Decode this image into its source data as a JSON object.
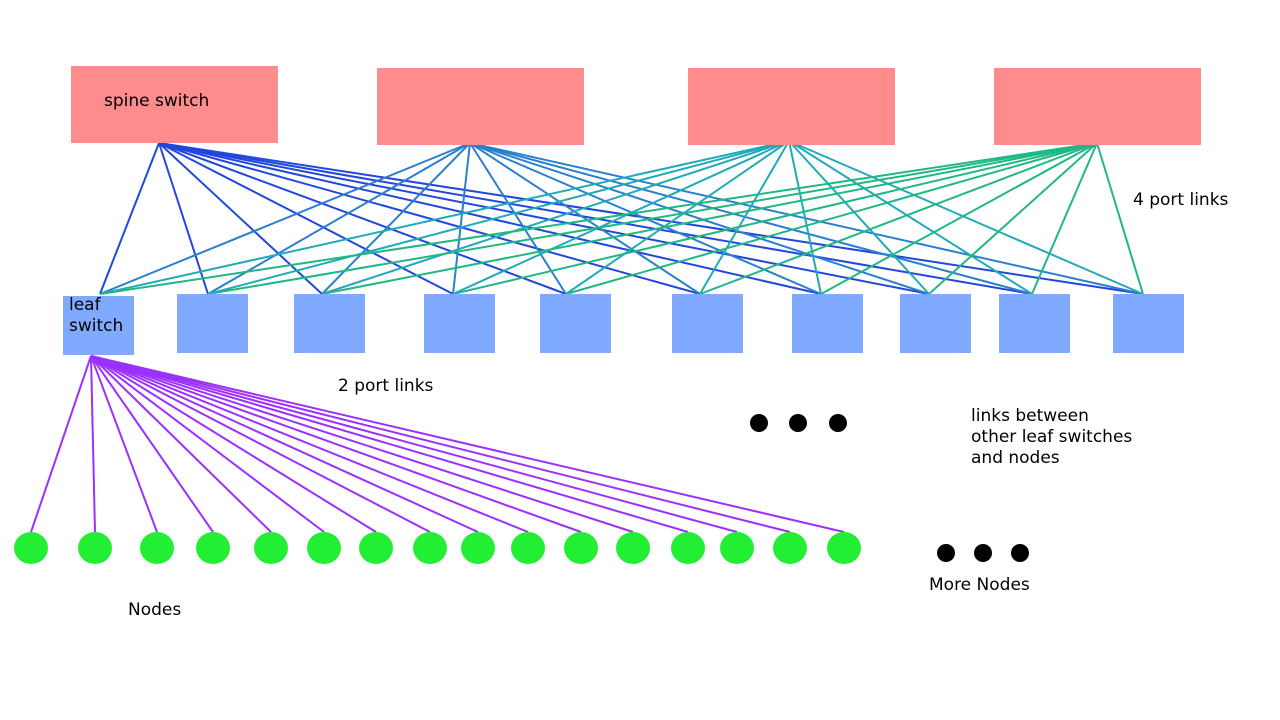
{
  "labels": {
    "spine": "spine switch",
    "leaf_line1": "leaf",
    "leaf_line2": "switch",
    "spine_links": "4 port links",
    "leaf_links": "2 port links",
    "other_links_line1": "links between",
    "other_links_line2": "other leaf switches",
    "other_links_line3": "and nodes",
    "nodes": "Nodes",
    "more_nodes": "More Nodes"
  },
  "counts": {
    "spine_switches": 4,
    "leaf_switches": 10,
    "nodes_shown": 16
  },
  "colors": {
    "spine_fill": "#ff8c8c",
    "leaf_fill": "#80aaff",
    "node_fill": "#22ee33",
    "node_link": "#9b30ff",
    "ellipsis_dot": "#000000",
    "spine_link_colors": [
      "#2247dd",
      "#2a7fcf",
      "#21aab8",
      "#1fb884"
    ]
  }
}
